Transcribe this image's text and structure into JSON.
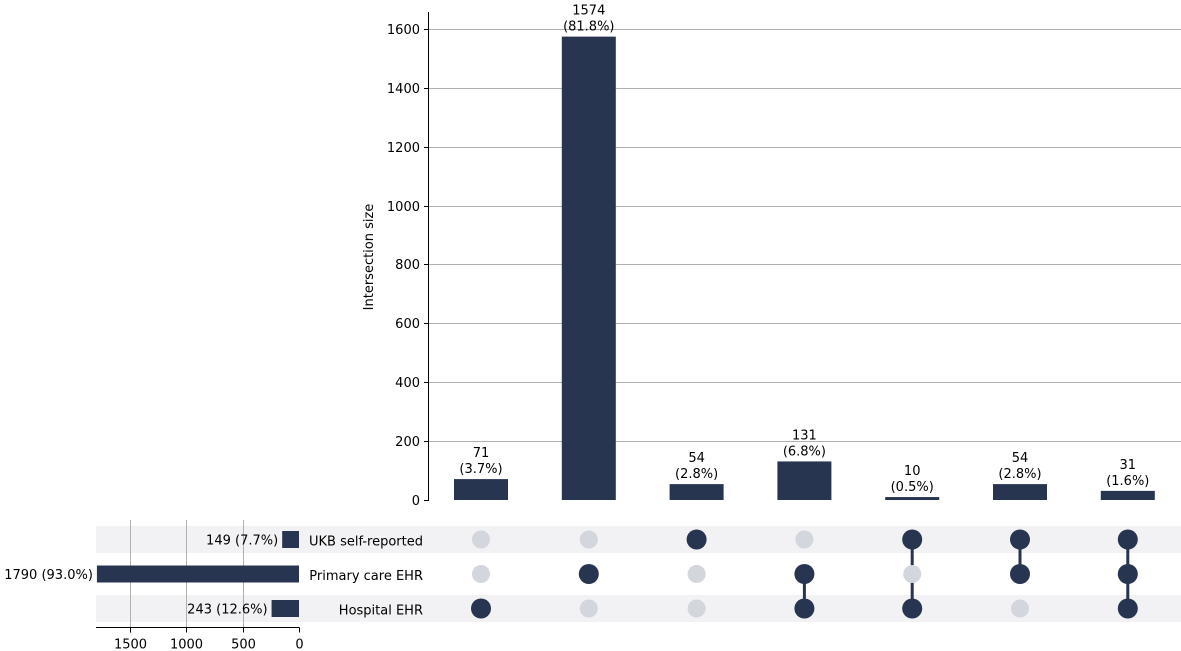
{
  "chart_data": {
    "type": "upset",
    "ylabel": "Intersection size",
    "ylim": [
      0,
      1650
    ],
    "yticks": [
      0,
      200,
      400,
      600,
      800,
      1000,
      1200,
      1400,
      1600
    ],
    "bar_color": "#283551",
    "inactive_dot_color": "#d3d6dc",
    "stripe_color": "#f2f2f4",
    "grid": true,
    "sets": [
      {
        "name": "UKB self-reported",
        "size": 149,
        "label": "149 (7.7%)"
      },
      {
        "name": "Primary care EHR",
        "size": 1790,
        "label": "1790 (93.0%)"
      },
      {
        "name": "Hospital EHR",
        "size": 243,
        "label": "243 (12.6%)"
      }
    ],
    "set_size_xlim": [
      1800,
      0
    ],
    "set_size_ticks": [
      1500,
      1000,
      500,
      0
    ],
    "intersections": [
      {
        "members": [
          false,
          false,
          true
        ],
        "value": 71,
        "count_label": "71",
        "pct_label": "(3.7%)"
      },
      {
        "members": [
          false,
          true,
          false
        ],
        "value": 1574,
        "count_label": "1574",
        "pct_label": "(81.8%)"
      },
      {
        "members": [
          true,
          false,
          false
        ],
        "value": 54,
        "count_label": "54",
        "pct_label": "(2.8%)"
      },
      {
        "members": [
          false,
          true,
          true
        ],
        "value": 131,
        "count_label": "131",
        "pct_label": "(6.8%)"
      },
      {
        "members": [
          true,
          false,
          true
        ],
        "value": 10,
        "count_label": "10",
        "pct_label": "(0.5%)"
      },
      {
        "members": [
          true,
          true,
          false
        ],
        "value": 54,
        "count_label": "54",
        "pct_label": "(2.8%)"
      },
      {
        "members": [
          true,
          true,
          true
        ],
        "value": 31,
        "count_label": "31",
        "pct_label": "(1.6%)"
      }
    ]
  }
}
